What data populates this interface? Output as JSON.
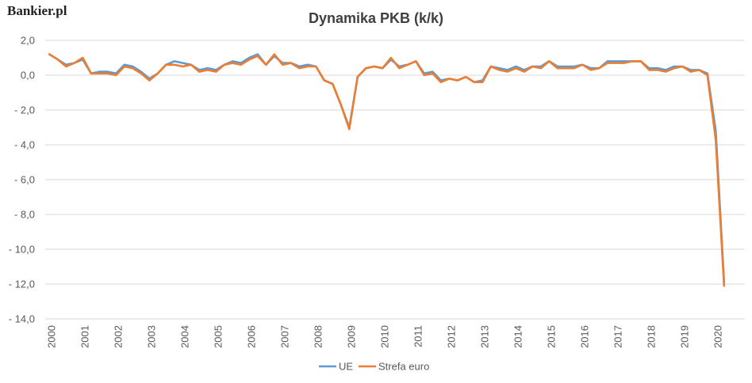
{
  "brand": {
    "logo_text": "Bankier.pl"
  },
  "chart_data": {
    "type": "line",
    "title": "Dynamika PKB (k/k)",
    "xlabel": "",
    "ylabel": "",
    "ylim": [
      -14,
      2
    ],
    "yticks": [
      2,
      0,
      -2,
      -4,
      -6,
      -8,
      -10,
      -12,
      -14
    ],
    "ytick_labels": [
      "2,0",
      "0,0",
      "- 2,0",
      "- 4,0",
      "- 6,0",
      "- 8,0",
      "- 10,0",
      "- 12,0",
      "- 14,0"
    ],
    "x_ticks": [
      "2000",
      "2001",
      "2002",
      "2003",
      "2004",
      "2005",
      "2006",
      "2007",
      "2008",
      "2009",
      "2010",
      "2011",
      "2012",
      "2013",
      "2014",
      "2015",
      "2016",
      "2017",
      "2018",
      "2019",
      "2020"
    ],
    "grid": true,
    "legend_position": "bottom",
    "series": [
      {
        "name": "UE",
        "color": "#5b9bd5",
        "values": [
          1.2,
          0.9,
          0.6,
          0.7,
          0.9,
          0.1,
          0.2,
          0.2,
          0.1,
          0.6,
          0.5,
          0.2,
          -0.2,
          0.1,
          0.6,
          0.8,
          0.7,
          0.6,
          0.3,
          0.4,
          0.3,
          0.6,
          0.8,
          0.7,
          1.0,
          1.2,
          0.6,
          1.1,
          0.7,
          0.7,
          0.5,
          0.6,
          0.5,
          -0.3,
          -0.5,
          -1.7,
          -3.0,
          -0.1,
          0.4,
          0.5,
          0.4,
          0.9,
          0.5,
          0.6,
          0.8,
          0.1,
          0.2,
          -0.3,
          -0.2,
          -0.3,
          -0.1,
          -0.4,
          -0.3,
          0.5,
          0.4,
          0.3,
          0.5,
          0.3,
          0.5,
          0.5,
          0.8,
          0.5,
          0.5,
          0.5,
          0.6,
          0.4,
          0.4,
          0.8,
          0.8,
          0.8,
          0.8,
          0.8,
          0.4,
          0.4,
          0.3,
          0.5,
          0.5,
          0.3,
          0.3,
          0.1,
          -3.2,
          -11.9
        ]
      },
      {
        "name": "Strefa euro",
        "color": "#ed7d31",
        "values": [
          1.2,
          0.9,
          0.5,
          0.7,
          1.0,
          0.1,
          0.1,
          0.1,
          0.0,
          0.5,
          0.4,
          0.1,
          -0.3,
          0.1,
          0.6,
          0.6,
          0.5,
          0.6,
          0.2,
          0.3,
          0.2,
          0.6,
          0.7,
          0.6,
          0.9,
          1.1,
          0.6,
          1.2,
          0.6,
          0.7,
          0.4,
          0.5,
          0.5,
          -0.3,
          -0.5,
          -1.7,
          -3.1,
          -0.1,
          0.4,
          0.5,
          0.4,
          1.0,
          0.4,
          0.6,
          0.8,
          0.0,
          0.1,
          -0.4,
          -0.2,
          -0.3,
          -0.1,
          -0.4,
          -0.4,
          0.5,
          0.3,
          0.2,
          0.4,
          0.2,
          0.5,
          0.4,
          0.8,
          0.4,
          0.4,
          0.4,
          0.6,
          0.3,
          0.4,
          0.7,
          0.7,
          0.7,
          0.8,
          0.8,
          0.3,
          0.3,
          0.2,
          0.4,
          0.5,
          0.2,
          0.3,
          0.0,
          -3.7,
          -12.1
        ]
      }
    ]
  }
}
